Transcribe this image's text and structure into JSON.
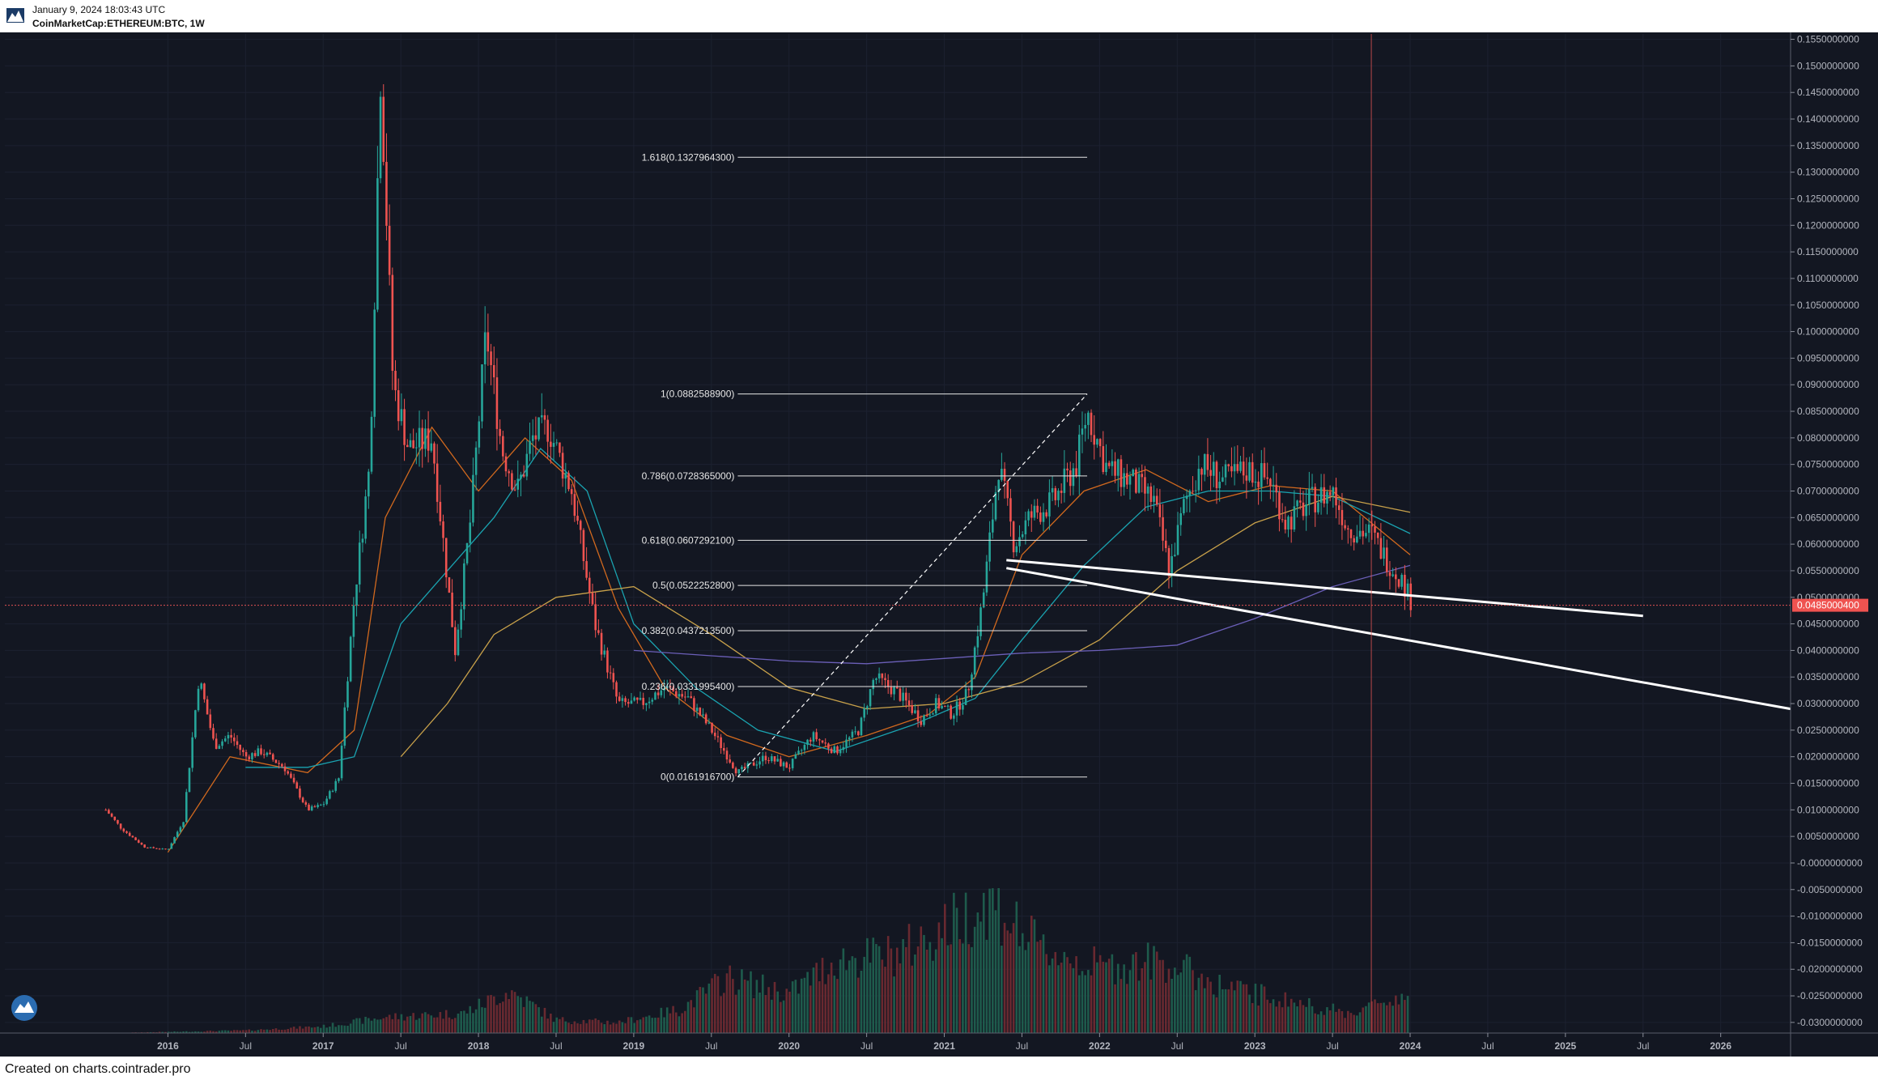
{
  "header": {
    "date": "January 9, 2024 18:03:43 UTC",
    "symbol": "CoinMarketCap:ETHEREUM:BTC, 1W"
  },
  "footer": {
    "created": "Created on charts.cointrader.pro"
  },
  "colors": {
    "background": "#131722",
    "up": "#26a69a",
    "down": "#ef5350",
    "price_tag": "#ef5350",
    "fib": "#e6e6e6",
    "trendline": "#ffffff",
    "ma_orange": "#d2691e",
    "ma_teal": "#1aa3b0",
    "ma_tan": "#c8a14a",
    "ma_purple": "#6b5fb8",
    "crosshair": "#e05252"
  },
  "chart_data": {
    "type": "candlestick",
    "ylim": [
      -0.032,
      0.156
    ],
    "y_ticks": [
      "0.1550000000",
      "0.1500000000",
      "0.1450000000",
      "0.1400000000",
      "0.1350000000",
      "0.1300000000",
      "0.1250000000",
      "0.1200000000",
      "0.1150000000",
      "0.1100000000",
      "0.1050000000",
      "0.1000000000",
      "0.0950000000",
      "0.0900000000",
      "0.0850000000",
      "0.0800000000",
      "0.0750000000",
      "0.0700000000",
      "0.0650000000",
      "0.0600000000",
      "0.0550000000",
      "0.0500000000",
      "0.0450000000",
      "0.0400000000",
      "0.0350000000",
      "0.0300000000",
      "0.0250000000",
      "0.0200000000",
      "0.0150000000",
      "0.0100000000",
      "0.0050000000",
      "-0.0000000000",
      "-0.0050000000",
      "-0.0100000000",
      "-0.0150000000",
      "-0.0200000000",
      "-0.0250000000",
      "-0.0300000000"
    ],
    "x_ticks": [
      "2016",
      "Jul",
      "2017",
      "Jul",
      "2018",
      "Jul",
      "2019",
      "Jul",
      "2020",
      "Jul",
      "2021",
      "Jul",
      "2022",
      "Jul",
      "2023",
      "Jul",
      "2024",
      "Jul",
      "2025",
      "Jul",
      "2026"
    ],
    "x_tick_dates": [
      2016.0,
      2016.5,
      2017.0,
      2017.5,
      2018.0,
      2018.5,
      2019.0,
      2019.5,
      2020.0,
      2020.5,
      2021.0,
      2021.5,
      2022.0,
      2022.5,
      2023.0,
      2023.5,
      2024.0,
      2024.5,
      2025.0,
      2025.5,
      2026.0
    ],
    "x_range": [
      2014.95,
      2026.45
    ],
    "last_price": "0.0485000400",
    "last_price_value": 0.0485,
    "crosshair_x": 2023.75,
    "fib_levels": [
      {
        "label": "1.618(0.1327964300)",
        "value": 0.1328
      },
      {
        "label": "1(0.0882588900)",
        "value": 0.08826
      },
      {
        "label": "0.786(0.0728365000)",
        "value": 0.07284
      },
      {
        "label": "0.618(0.0607292100)",
        "value": 0.06073
      },
      {
        "label": "0.5(0.0522252800)",
        "value": 0.05223
      },
      {
        "label": "0.382(0.0437213500)",
        "value": 0.04372
      },
      {
        "label": "0.236(0.0331995400)",
        "value": 0.0332
      },
      {
        "label": "0(0.0161916700)",
        "value": 0.01619
      }
    ],
    "fib_x_range": [
      2019.67,
      2021.92
    ],
    "fib_diagonal": [
      [
        2019.67,
        0.01619
      ],
      [
        2021.92,
        0.08826
      ]
    ],
    "trendlines": [
      [
        [
          2021.4,
          0.057
        ],
        [
          2025.5,
          0.0465
        ]
      ],
      [
        [
          2021.4,
          0.0555
        ],
        [
          2026.45,
          0.029
        ]
      ]
    ],
    "price_path": [
      [
        2015.6,
        0.01
      ],
      [
        2015.7,
        0.0065
      ],
      [
        2015.85,
        0.003
      ],
      [
        2016.0,
        0.0025
      ],
      [
        2016.1,
        0.008
      ],
      [
        2016.2,
        0.035
      ],
      [
        2016.3,
        0.022
      ],
      [
        2016.4,
        0.024
      ],
      [
        2016.5,
        0.02
      ],
      [
        2016.6,
        0.021
      ],
      [
        2016.75,
        0.018
      ],
      [
        2016.9,
        0.01
      ],
      [
        2017.0,
        0.011
      ],
      [
        2017.1,
        0.016
      ],
      [
        2017.2,
        0.05
      ],
      [
        2017.3,
        0.075
      ],
      [
        2017.37,
        0.15
      ],
      [
        2017.45,
        0.09
      ],
      [
        2017.55,
        0.078
      ],
      [
        2017.7,
        0.08
      ],
      [
        2017.85,
        0.04
      ],
      [
        2017.95,
        0.065
      ],
      [
        2018.05,
        0.1
      ],
      [
        2018.15,
        0.078
      ],
      [
        2018.25,
        0.07
      ],
      [
        2018.35,
        0.08
      ],
      [
        2018.45,
        0.082
      ],
      [
        2018.6,
        0.07
      ],
      [
        2018.75,
        0.045
      ],
      [
        2018.9,
        0.03
      ],
      [
        2019.05,
        0.03
      ],
      [
        2019.2,
        0.033
      ],
      [
        2019.35,
        0.031
      ],
      [
        2019.5,
        0.025
      ],
      [
        2019.67,
        0.017
      ],
      [
        2019.85,
        0.02
      ],
      [
        2020.0,
        0.018
      ],
      [
        2020.15,
        0.024
      ],
      [
        2020.3,
        0.021
      ],
      [
        2020.45,
        0.025
      ],
      [
        2020.55,
        0.035
      ],
      [
        2020.7,
        0.032
      ],
      [
        2020.85,
        0.027
      ],
      [
        2020.95,
        0.03
      ],
      [
        2021.05,
        0.028
      ],
      [
        2021.15,
        0.032
      ],
      [
        2021.25,
        0.05
      ],
      [
        2021.35,
        0.075
      ],
      [
        2021.45,
        0.06
      ],
      [
        2021.55,
        0.065
      ],
      [
        2021.7,
        0.068
      ],
      [
        2021.85,
        0.075
      ],
      [
        2021.92,
        0.085
      ],
      [
        2022.05,
        0.074
      ],
      [
        2022.2,
        0.072
      ],
      [
        2022.35,
        0.068
      ],
      [
        2022.45,
        0.055
      ],
      [
        2022.55,
        0.068
      ],
      [
        2022.65,
        0.075
      ],
      [
        2022.8,
        0.072
      ],
      [
        2022.95,
        0.074
      ],
      [
        2023.1,
        0.072
      ],
      [
        2023.2,
        0.064
      ],
      [
        2023.35,
        0.068
      ],
      [
        2023.5,
        0.07
      ],
      [
        2023.6,
        0.063
      ],
      [
        2023.75,
        0.062
      ],
      [
        2023.85,
        0.057
      ],
      [
        2023.95,
        0.053
      ],
      [
        2024.02,
        0.0485
      ]
    ],
    "volume_profile": [
      [
        2015.6,
        0.0
      ],
      [
        2016.5,
        0.02
      ],
      [
        2017.0,
        0.05
      ],
      [
        2017.4,
        0.12
      ],
      [
        2017.9,
        0.15
      ],
      [
        2018.2,
        0.32
      ],
      [
        2018.5,
        0.1
      ],
      [
        2018.9,
        0.08
      ],
      [
        2019.3,
        0.18
      ],
      [
        2019.6,
        0.42
      ],
      [
        2020.0,
        0.3
      ],
      [
        2020.3,
        0.55
      ],
      [
        2020.7,
        0.6
      ],
      [
        2021.0,
        0.8
      ],
      [
        2021.3,
        1.0
      ],
      [
        2021.6,
        0.65
      ],
      [
        2022.0,
        0.5
      ],
      [
        2022.4,
        0.55
      ],
      [
        2022.8,
        0.35
      ],
      [
        2023.2,
        0.25
      ],
      [
        2023.6,
        0.15
      ],
      [
        2024.0,
        0.3
      ]
    ],
    "moving_averages": [
      {
        "color_key": "ma_orange",
        "points": [
          [
            2016.0,
            0.002
          ],
          [
            2016.4,
            0.02
          ],
          [
            2016.9,
            0.017
          ],
          [
            2017.2,
            0.025
          ],
          [
            2017.4,
            0.065
          ],
          [
            2017.7,
            0.082
          ],
          [
            2018.0,
            0.07
          ],
          [
            2018.3,
            0.08
          ],
          [
            2018.6,
            0.072
          ],
          [
            2018.9,
            0.048
          ],
          [
            2019.2,
            0.033
          ],
          [
            2019.6,
            0.024
          ],
          [
            2020.0,
            0.02
          ],
          [
            2020.5,
            0.024
          ],
          [
            2020.9,
            0.028
          ],
          [
            2021.2,
            0.035
          ],
          [
            2021.5,
            0.058
          ],
          [
            2021.9,
            0.07
          ],
          [
            2022.3,
            0.074
          ],
          [
            2022.7,
            0.068
          ],
          [
            2023.1,
            0.071
          ],
          [
            2023.5,
            0.07
          ],
          [
            2024.0,
            0.058
          ]
        ]
      },
      {
        "color_key": "ma_teal",
        "points": [
          [
            2016.5,
            0.018
          ],
          [
            2016.9,
            0.018
          ],
          [
            2017.2,
            0.02
          ],
          [
            2017.5,
            0.045
          ],
          [
            2017.8,
            0.055
          ],
          [
            2018.1,
            0.065
          ],
          [
            2018.4,
            0.078
          ],
          [
            2018.7,
            0.07
          ],
          [
            2019.0,
            0.045
          ],
          [
            2019.4,
            0.033
          ],
          [
            2019.8,
            0.025
          ],
          [
            2020.3,
            0.021
          ],
          [
            2020.8,
            0.026
          ],
          [
            2021.2,
            0.031
          ],
          [
            2021.5,
            0.042
          ],
          [
            2021.9,
            0.056
          ],
          [
            2022.3,
            0.067
          ],
          [
            2022.7,
            0.07
          ],
          [
            2023.1,
            0.07
          ],
          [
            2023.5,
            0.069
          ],
          [
            2024.0,
            0.062
          ]
        ]
      },
      {
        "color_key": "ma_tan",
        "points": [
          [
            2017.5,
            0.02
          ],
          [
            2017.8,
            0.03
          ],
          [
            2018.1,
            0.043
          ],
          [
            2018.5,
            0.05
          ],
          [
            2019.0,
            0.052
          ],
          [
            2019.5,
            0.043
          ],
          [
            2020.0,
            0.033
          ],
          [
            2020.5,
            0.029
          ],
          [
            2021.0,
            0.03
          ],
          [
            2021.5,
            0.034
          ],
          [
            2022.0,
            0.042
          ],
          [
            2022.5,
            0.055
          ],
          [
            2023.0,
            0.064
          ],
          [
            2023.5,
            0.069
          ],
          [
            2024.0,
            0.066
          ]
        ]
      },
      {
        "color_key": "ma_purple",
        "points": [
          [
            2019.0,
            0.04
          ],
          [
            2019.5,
            0.039
          ],
          [
            2020.0,
            0.038
          ],
          [
            2020.5,
            0.0375
          ],
          [
            2021.0,
            0.0385
          ],
          [
            2021.5,
            0.0395
          ],
          [
            2022.0,
            0.04
          ],
          [
            2022.5,
            0.041
          ],
          [
            2023.0,
            0.046
          ],
          [
            2023.5,
            0.052
          ],
          [
            2024.0,
            0.056
          ]
        ]
      }
    ]
  }
}
